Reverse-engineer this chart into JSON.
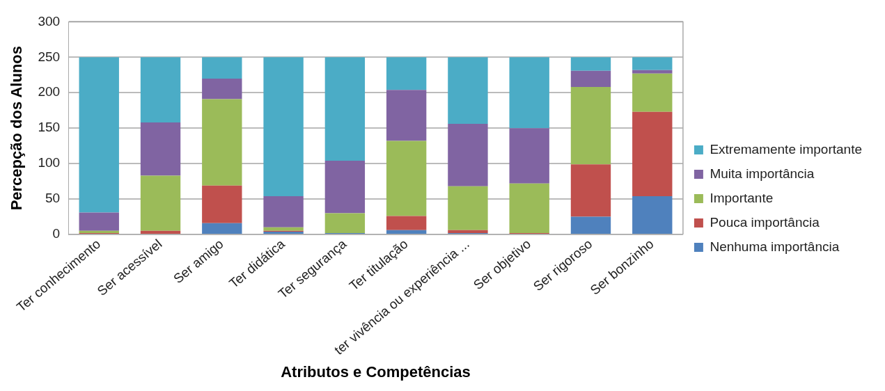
{
  "chart_data": {
    "type": "bar",
    "stacked": true,
    "xlabel": "Atributos e Competências",
    "ylabel": "Percepção dos Alunos",
    "categories": [
      "Ter conhecimento",
      "Ser acessível",
      "Ser amigo",
      "Ter didática",
      "Ter segurança",
      "Ter titulação",
      "ter vivência ou experiência ...",
      "Ser objetivo",
      "Ser rigoroso",
      "Ser bonzinho"
    ],
    "series": [
      {
        "name": "Nenhuma importância",
        "color": "#4f81bd",
        "values": [
          null,
          null,
          16,
          4,
          2,
          6,
          2,
          0,
          25,
          54
        ]
      },
      {
        "name": "Pouca importância",
        "color": "#c0504d",
        "values": [
          2,
          5,
          53,
          1,
          0,
          20,
          4,
          2,
          74,
          119
        ]
      },
      {
        "name": "Importante",
        "color": "#9bbb59",
        "values": [
          3,
          78,
          122,
          5,
          28,
          106,
          62,
          70,
          109,
          54
        ]
      },
      {
        "name": "Muita importância",
        "color": "#8064a2",
        "values": [
          26,
          75,
          29,
          44,
          74,
          72,
          88,
          78,
          23,
          5
        ]
      },
      {
        "name": "Extremamente importante",
        "color": "#4bacc6",
        "values": [
          219,
          92,
          30,
          196,
          146,
          46,
          94,
          100,
          19,
          18
        ]
      }
    ],
    "ylim": [
      0,
      300
    ],
    "yticks": [
      0,
      50,
      100,
      150,
      200,
      250,
      300
    ],
    "grid": "y",
    "legend": "right"
  }
}
